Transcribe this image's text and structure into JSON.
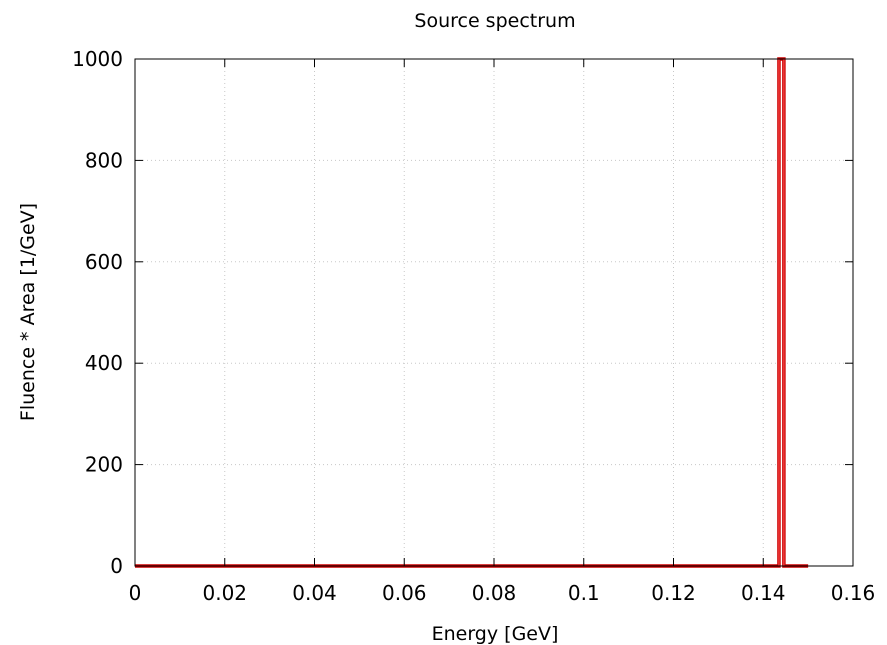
{
  "chart_data": {
    "type": "line",
    "title": "Source spectrum",
    "xlabel": "Energy [GeV]",
    "ylabel": "Fluence * Area [1/GeV]",
    "xlim": [
      0,
      0.16
    ],
    "ylim": [
      0,
      1000
    ],
    "x_ticks": [
      0,
      0.02,
      0.04,
      0.06,
      0.08,
      0.1,
      0.12,
      0.14,
      0.16
    ],
    "x_tick_labels": [
      "0",
      "0.02",
      "0.04",
      "0.06",
      "0.08",
      "0.1",
      "0.12",
      "0.14",
      "0.16"
    ],
    "y_ticks": [
      0,
      200,
      400,
      600,
      800,
      1000
    ],
    "y_tick_labels": [
      "0",
      "200",
      "400",
      "600",
      "800",
      "1000"
    ],
    "grid": true,
    "legend": "none",
    "series": [
      {
        "color": "#cc0000",
        "x": [
          0,
          0.1435,
          0.1435,
          0.1446,
          0.1446,
          0.15
        ],
        "y": [
          0,
          0,
          1000,
          1000,
          0,
          0
        ]
      }
    ]
  }
}
